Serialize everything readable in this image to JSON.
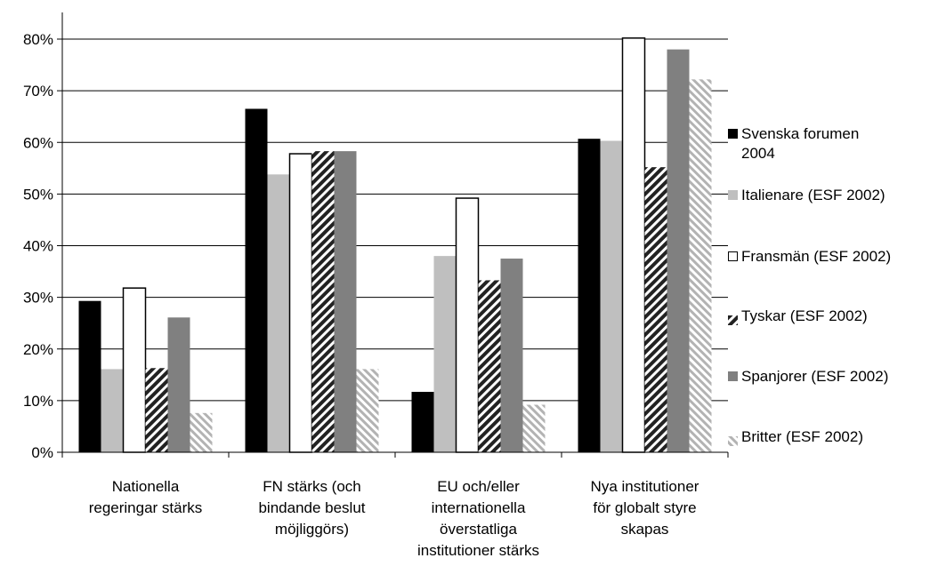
{
  "chart_data": {
    "type": "bar",
    "categories": [
      [
        "Nationella",
        "regeringar stärks"
      ],
      [
        "FN stärks (och",
        "bindande beslut",
        "möjliggörs)"
      ],
      [
        "EU och/eller",
        "internationella",
        "överstatliga",
        "institutioner stärks"
      ],
      [
        "Nya institutioner",
        "för globalt styre",
        "skapas"
      ]
    ],
    "series": [
      {
        "name": "Svenska forumen 2004",
        "legend_lines": [
          "Svenska forumen",
          "2004"
        ],
        "values": [
          0.293,
          0.665,
          0.117,
          0.607
        ],
        "color": "#000000",
        "pattern": "solid"
      },
      {
        "name": "Italienare (ESF 2002)",
        "legend_lines": [
          "Italienare (ESF 2002)"
        ],
        "values": [
          0.161,
          0.538,
          0.38,
          0.603
        ],
        "color": "#bfbfbf",
        "pattern": "solid"
      },
      {
        "name": "Fransmän (ESF 2002)",
        "legend_lines": [
          "Fransmän (ESF 2002)"
        ],
        "values": [
          0.318,
          0.578,
          0.492,
          0.802
        ],
        "color": "#ffffff",
        "pattern": "outline"
      },
      {
        "name": "Tyskar (ESF 2002)",
        "legend_lines": [
          "Tyskar (ESF 2002)"
        ],
        "values": [
          0.163,
          0.583,
          0.333,
          0.552
        ],
        "color": "#333333",
        "pattern": "hatch-dark"
      },
      {
        "name": "Spanjorer (ESF 2002)",
        "legend_lines": [
          "Spanjorer (ESF 2002)"
        ],
        "values": [
          0.261,
          0.583,
          0.375,
          0.78
        ],
        "color": "#808080",
        "pattern": "solid"
      },
      {
        "name": "Britter (ESF 2002)",
        "legend_lines": [
          "Britter (ESF 2002)"
        ],
        "values": [
          0.076,
          0.161,
          0.092,
          0.722
        ],
        "color": "#bfbfbf",
        "pattern": "hatch-light"
      }
    ],
    "y_ticks": [
      "0%",
      "10%",
      "20%",
      "30%",
      "40%",
      "50%",
      "60%",
      "70%",
      "80%"
    ],
    "ylim": [
      0,
      0.9
    ],
    "grid": true,
    "legend_position": "right"
  }
}
